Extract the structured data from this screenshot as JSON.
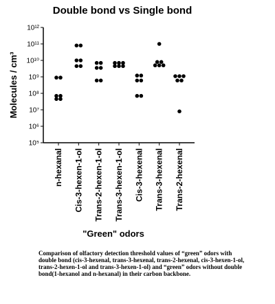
{
  "chart_data": {
    "type": "scatter",
    "title": "Double bond vs Single bond",
    "xlabel": "\"Green\" odors",
    "ylabel": "Molecules / cm³",
    "yscale": "log",
    "ylim_exponent": [
      5,
      12
    ],
    "y_tick_labels": [
      "10⁵",
      "10⁶",
      "10⁷",
      "10⁸",
      "10⁹",
      "10¹⁰",
      "10¹¹",
      "10¹²"
    ],
    "categories": [
      "n-hexanal",
      "Cis-3-hexen-1-ol",
      "Trans-2-hexen-1-ol",
      "Trans-3-hexen-1-ol",
      "Cis-3-hexenal",
      "Trans-3-hexenal",
      "Trans-2-hexenal"
    ],
    "points": [
      {
        "category": "n-hexanal",
        "values": [
          900000000.0,
          900000000.0,
          70000000.0,
          70000000.0,
          45000000.0,
          45000000.0
        ]
      },
      {
        "category": "Cis-3-hexen-1-ol",
        "values": [
          80000000000.0,
          80000000000.0,
          10000000000.0,
          10000000000.0,
          4500000000.0,
          4500000000.0
        ]
      },
      {
        "category": "Trans-2-hexen-1-ol",
        "values": [
          7000000000.0,
          7000000000.0,
          3500000000.0,
          3500000000.0,
          600000000.0,
          600000000.0
        ]
      },
      {
        "category": "Trans-3-hexen-1-ol",
        "values": [
          7000000000.0,
          7000000000.0,
          7000000000.0,
          4500000000.0,
          4500000000.0,
          4500000000.0
        ]
      },
      {
        "category": "Cis-3-hexenal",
        "values": [
          1200000000.0,
          1200000000.0,
          600000000.0,
          600000000.0,
          70000000.0,
          70000000.0
        ]
      },
      {
        "category": "Trans-3-hexenal",
        "values": [
          100000000000.0,
          8000000000.0,
          8000000000.0,
          5000000000.0,
          5000000000.0,
          5000000000.0
        ]
      },
      {
        "category": "Trans-2-hexenal",
        "values": [
          1100000000.0,
          1100000000.0,
          1100000000.0,
          600000000.0,
          600000000.0,
          8000000.0
        ]
      }
    ],
    "colors": {
      "marker": "#000000",
      "axis": "#000000"
    },
    "grid": false
  },
  "caption": "Comparison of olfactory detection threshold values of “green” odors with double bond (cis-3-hexenal, trans-3-hexenal, trans-2-hexenal, cis-3-hexen-1-ol, trans-2-hexen-1-ol and trans-3-hexen-1-ol) and “green” odors without double bond(1-hexanol and n-hexanal) in their carbon backbone."
}
